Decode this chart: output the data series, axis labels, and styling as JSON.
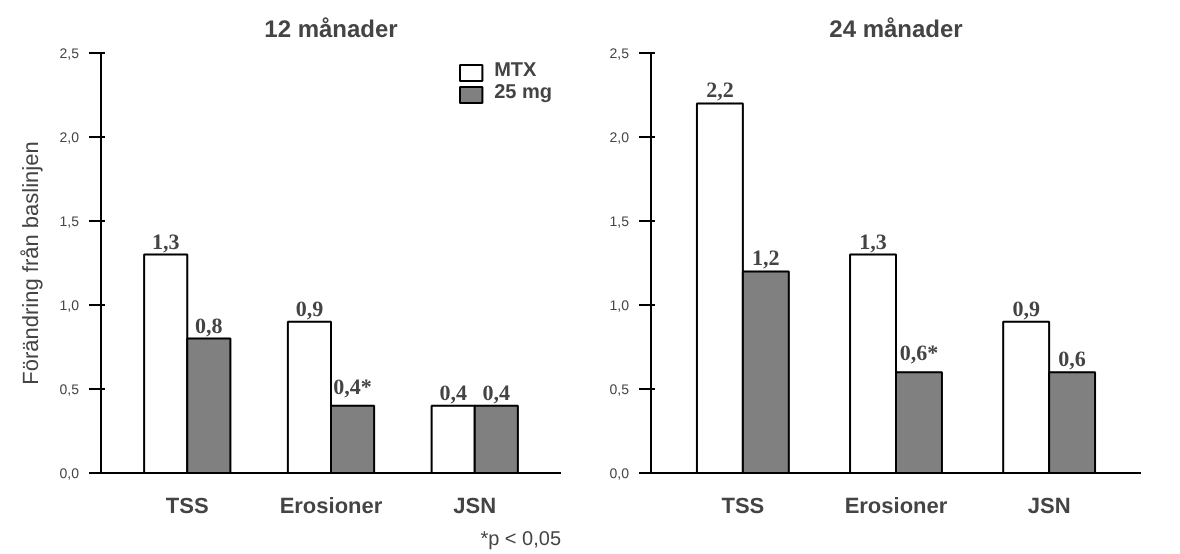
{
  "chart_data": [
    {
      "type": "bar",
      "title": "12 månader",
      "ylabel": "Förändring från baslinjen",
      "categories": [
        "TSS",
        "Erosioner",
        "JSN"
      ],
      "series": [
        {
          "name": "MTX",
          "color": "#ffffff",
          "values": [
            1.3,
            0.9,
            0.4
          ],
          "value_labels": [
            "1,3",
            "0,9",
            "0,4"
          ]
        },
        {
          "name": "25 mg",
          "color": "#808080",
          "values": [
            0.8,
            0.4,
            0.4
          ],
          "value_labels": [
            "0,8",
            "0,4*",
            "0,4"
          ]
        }
      ],
      "ylim": [
        0,
        2.5
      ],
      "yticks": [
        {
          "value": 0,
          "label": "0,0"
        },
        {
          "value": 0.5,
          "label": "0,5"
        },
        {
          "value": 1,
          "label": "1,0"
        },
        {
          "value": 1.5,
          "label": "1,5"
        },
        {
          "value": 2,
          "label": "2,0"
        },
        {
          "value": 2.5,
          "label": "2,5"
        }
      ],
      "legend": "top right",
      "annotations": [
        "*p < 0,05"
      ]
    },
    {
      "type": "bar",
      "title": "24 månader",
      "categories": [
        "TSS",
        "Erosioner",
        "JSN"
      ],
      "series": [
        {
          "color": "#ffffff",
          "values": [
            2.2,
            1.3,
            0.9
          ],
          "value_labels": [
            "2,2",
            "1,3",
            "0,9"
          ]
        },
        {
          "color": "#808080",
          "values": [
            1.2,
            0.6,
            0.6
          ],
          "value_labels": [
            "1,2",
            "0,6*",
            "0,6"
          ]
        }
      ],
      "ylim": [
        0,
        2.5
      ],
      "yticks": [
        {
          "value": 0,
          "label": "0,0"
        },
        {
          "value": 0.5,
          "label": "0,5"
        },
        {
          "value": 1,
          "label": "1,0"
        },
        {
          "value": 1.5,
          "label": "1,5"
        },
        {
          "value": 2,
          "label": "2,0"
        },
        {
          "value": 2.5,
          "label": "2,5"
        }
      ]
    }
  ]
}
